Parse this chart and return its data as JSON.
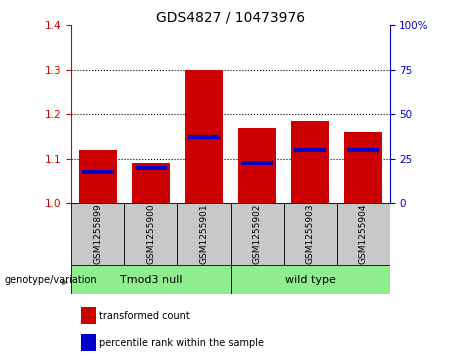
{
  "title": "GDS4827 / 10473976",
  "samples": [
    "GSM1255899",
    "GSM1255900",
    "GSM1255901",
    "GSM1255902",
    "GSM1255903",
    "GSM1255904"
  ],
  "red_bar_tops": [
    1.12,
    1.09,
    1.3,
    1.17,
    1.185,
    1.16
  ],
  "blue_marker_pos": [
    1.07,
    1.08,
    1.15,
    1.09,
    1.12,
    1.12
  ],
  "bar_base": 1.0,
  "ylim": [
    1.0,
    1.4
  ],
  "yticks_left": [
    1.0,
    1.1,
    1.2,
    1.3,
    1.4
  ],
  "yticks_right": [
    0,
    25,
    50,
    75,
    100
  ],
  "ylim_right": [
    0,
    100
  ],
  "group1_label": "Tmod3 null",
  "group2_label": "wild type",
  "group1_indices": [
    0,
    1,
    2
  ],
  "group2_indices": [
    3,
    4,
    5
  ],
  "group1_color": "#90EE90",
  "group2_color": "#90EE90",
  "bar_color_red": "#CC0000",
  "bar_color_blue": "#0000CC",
  "xlabel_label": "genotype/variation",
  "legend_red": "transformed count",
  "legend_blue": "percentile rank within the sample",
  "bar_width": 0.7,
  "background_color": "#ffffff",
  "plot_bg": "#ffffff",
  "label_area_color": "#C8C8C8",
  "title_fontsize": 10,
  "tick_fontsize": 7.5,
  "axis_color_left": "#CC0000",
  "axis_color_right": "#0000CC",
  "sample_fontsize": 6.5,
  "group_fontsize": 8,
  "legend_fontsize": 7,
  "geno_fontsize": 7
}
